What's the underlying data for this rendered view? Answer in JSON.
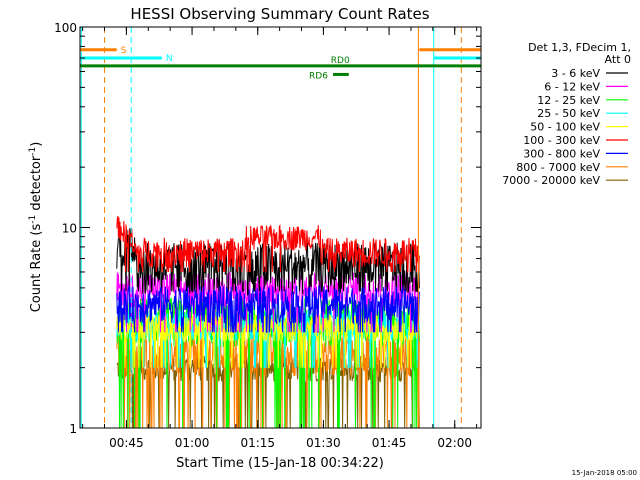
{
  "chart_data": {
    "type": "line",
    "title": "HESSI Observing Summary Count Rates",
    "xlabel": "Start Time (15-Jan-18 00:34:22)",
    "ylabel_main": "Count Rate (s",
    "ylabel_sup1": "-1",
    "ylabel_mid": " detector",
    "ylabel_sup2": "-1",
    "ylabel_end": ")",
    "yscale": "log",
    "ylim": [
      1,
      100
    ],
    "yticks": [
      {
        "value": 1,
        "label": "1"
      },
      {
        "value": 10,
        "label": "10"
      },
      {
        "value": 100,
        "label": "100"
      }
    ],
    "xlim_min": [
      0,
      91.6
    ],
    "xticks": [
      {
        "min": 10.6,
        "label": "00:45"
      },
      {
        "min": 25.6,
        "label": "01:00"
      },
      {
        "min": 40.6,
        "label": "01:15"
      },
      {
        "min": 55.6,
        "label": "01:30"
      },
      {
        "min": 70.6,
        "label": "01:45"
      },
      {
        "min": 85.6,
        "label": "02:00"
      }
    ],
    "legend": {
      "placement": "right",
      "header": [
        "Det 1,3, FDecim 1,",
        "Att 0"
      ],
      "entries": [
        {
          "label": "3 - 6 keV",
          "color": "#000000"
        },
        {
          "label": "6 - 12 keV",
          "color": "#ff00ff"
        },
        {
          "label": "12 - 25 keV",
          "color": "#00ff00"
        },
        {
          "label": "25 - 50 keV",
          "color": "#00ffff"
        },
        {
          "label": "50 - 100 keV",
          "color": "#ffff00"
        },
        {
          "label": "100 - 300 keV",
          "color": "#ff0000"
        },
        {
          "label": "300 - 800 keV",
          "color": "#0000ff"
        },
        {
          "label": "800 - 7000 keV",
          "color": "#ff8000"
        },
        {
          "label": "7000 - 20000 keV",
          "color": "#806000"
        }
      ]
    },
    "data_span_min": [
      8.4,
      77.5
    ],
    "series_levels": [
      {
        "name": "3 - 6 keV",
        "color": "#000000",
        "typical": 6.5,
        "spread": 1.9,
        "low": 4.8
      },
      {
        "name": "6 - 12 keV",
        "color": "#ff00ff",
        "typical": 5.0,
        "spread": 1.0,
        "low": 3.0
      },
      {
        "name": "12 - 25 keV",
        "color": "#00ff00",
        "typical": 3.5,
        "spread": 1.0,
        "low": 1.0
      },
      {
        "name": "25 - 50 keV",
        "color": "#00ffff",
        "typical": 3.3,
        "spread": 0.6,
        "low": 2.0
      },
      {
        "name": "50 - 100 keV",
        "color": "#ffff00",
        "typical": 3.2,
        "spread": 0.5,
        "low": 2.0
      },
      {
        "name": "100 - 300 keV",
        "color": "#ff0000",
        "typical": 7.6,
        "spread": 1.3,
        "low": 6.0
      },
      {
        "name": "300 - 800 keV",
        "color": "#0000ff",
        "typical": 4.2,
        "spread": 0.9,
        "low": 3.0
      },
      {
        "name": "800 - 7000 keV",
        "color": "#ff8000",
        "typical": 2.4,
        "spread": 0.6,
        "low": 1.0
      },
      {
        "name": "7000 - 20000 keV",
        "color": "#806000",
        "typical": 2.0,
        "spread": 0.3,
        "low": 1.0
      }
    ],
    "flags": [
      {
        "label": "S",
        "color": "#ff8000",
        "kind": "bar",
        "y": 77,
        "x0": 0,
        "x1": 8.4
      },
      {
        "label": "N",
        "color": "#00ffff",
        "kind": "bar",
        "y": 70,
        "x0": 0,
        "x1": 18.7
      },
      {
        "label": "RD0",
        "color": "#008000",
        "kind": "bar",
        "y": 64,
        "x0": 0,
        "x1": 91.6
      },
      {
        "label": "RD6",
        "color": "#008000",
        "kind": "bar",
        "y": 58,
        "x0": 57.8,
        "x1": 61.4
      },
      {
        "label": "",
        "color": "#ff8000",
        "kind": "bar",
        "y": 77,
        "x0": 77.5,
        "x1": 91.6
      },
      {
        "label": "",
        "color": "#00ffff",
        "kind": "bar",
        "y": 70,
        "x0": 80.8,
        "x1": 91.6
      }
    ],
    "vlines": [
      {
        "min": 0.3,
        "color": "#00ffff",
        "style": "solid"
      },
      {
        "min": 5.6,
        "color": "#ff8000",
        "style": "dashed"
      },
      {
        "min": 11.7,
        "color": "#00ffff",
        "style": "dashed"
      },
      {
        "min": 77.3,
        "color": "#ff8000",
        "style": "solid"
      },
      {
        "min": 80.8,
        "color": "#00ffff",
        "style": "solid"
      },
      {
        "min": 87.1,
        "color": "#ff8000",
        "style": "dashed"
      }
    ],
    "grid": false
  },
  "footer_date": "15-Jan-2018 05:00"
}
